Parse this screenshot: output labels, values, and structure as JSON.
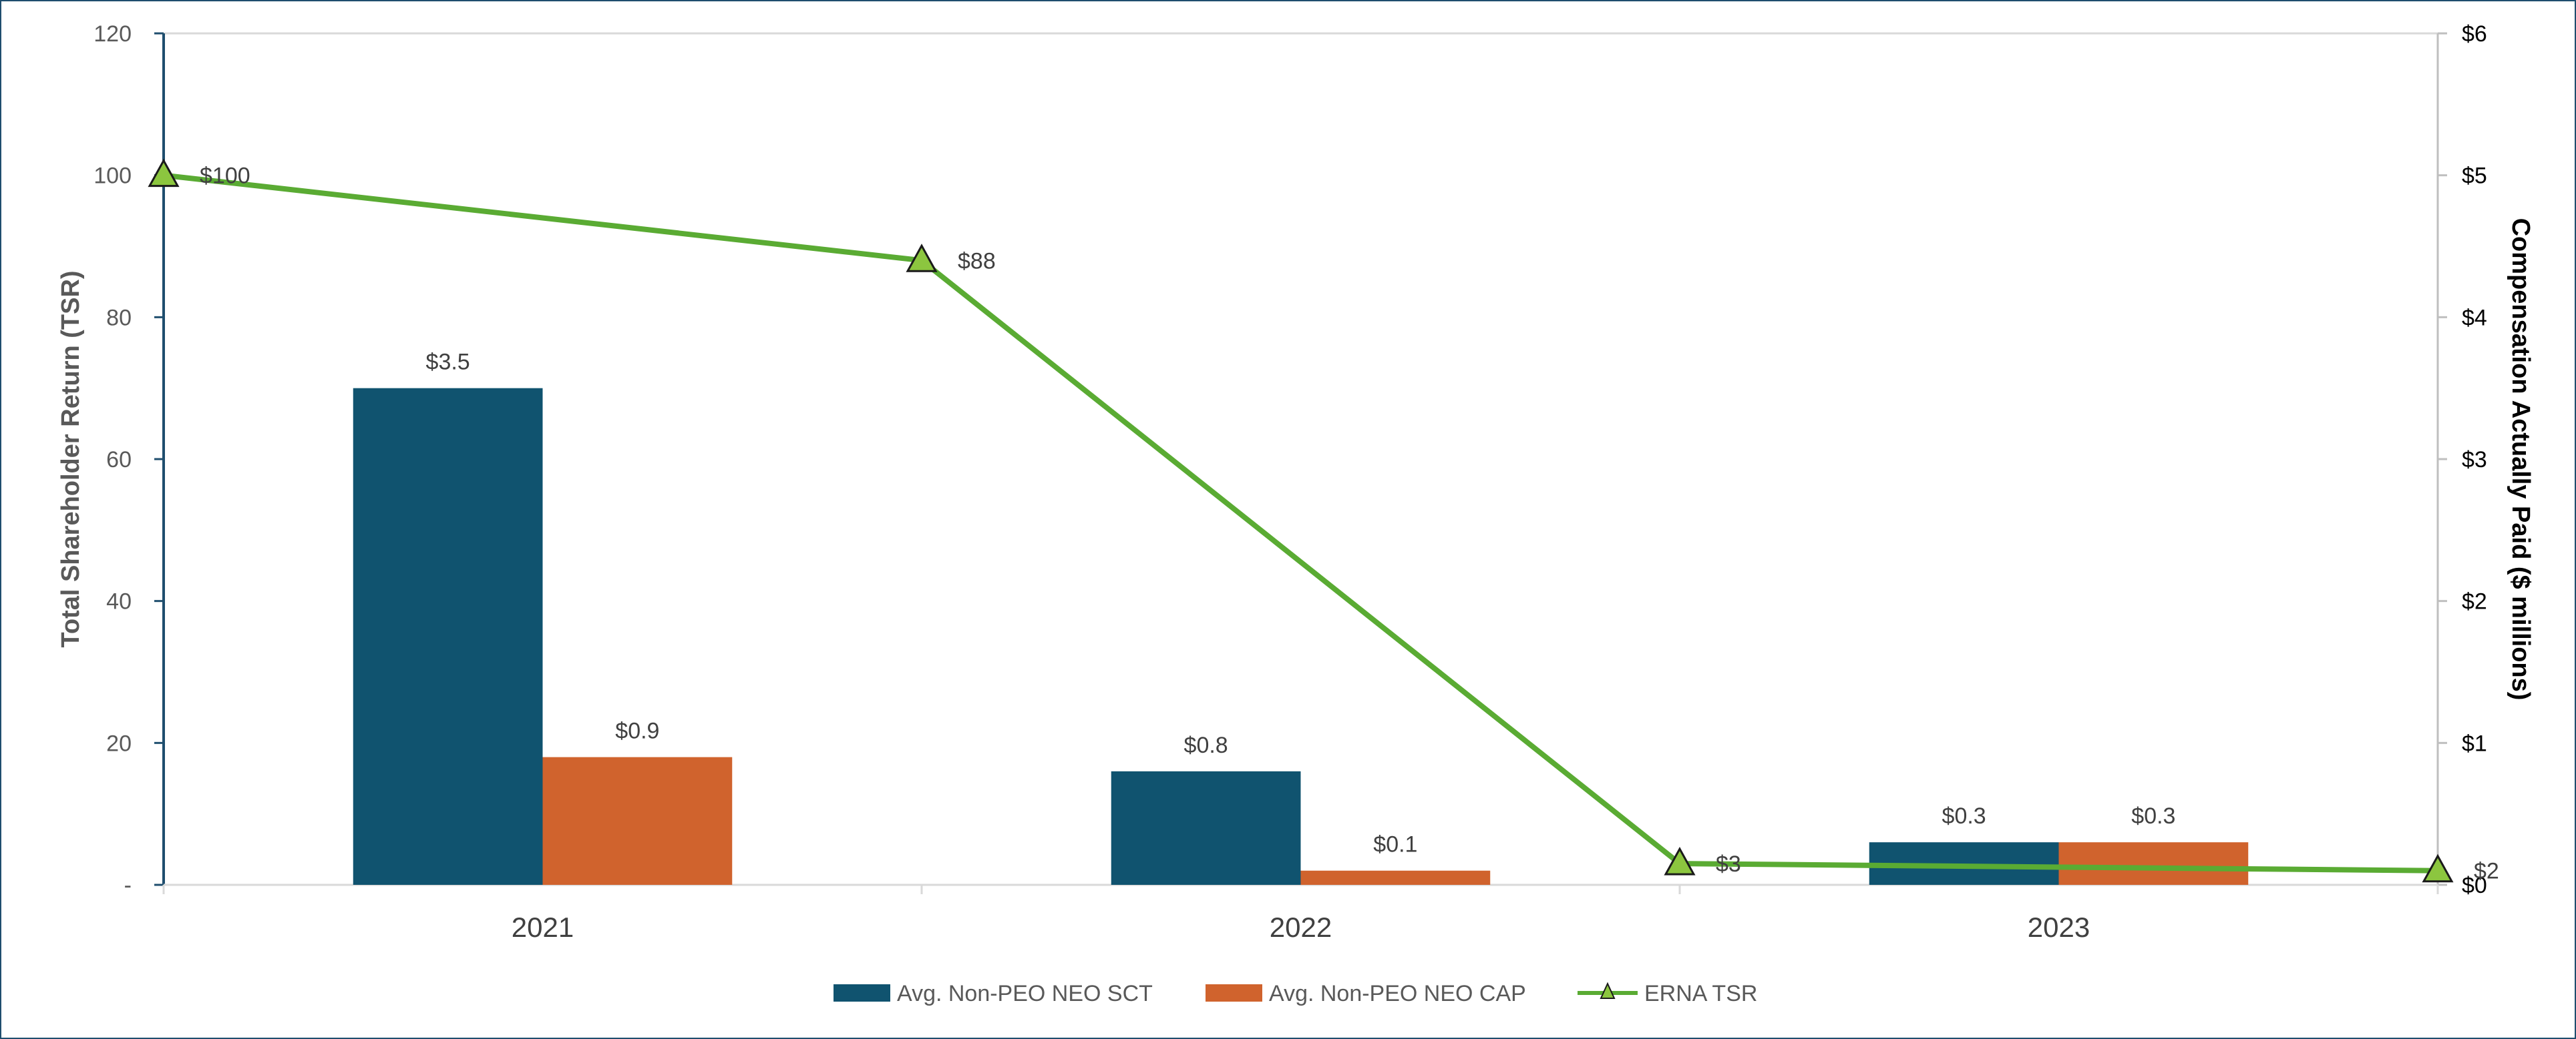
{
  "chart_data": {
    "type": "bar",
    "categories": [
      "2021",
      "2022",
      "2023"
    ],
    "series": [
      {
        "name": "Avg. Non-PEO NEO SCT",
        "values": [
          3.5,
          0.8,
          0.3
        ],
        "labels": [
          "$3.5",
          "$0.8",
          "$0.3"
        ],
        "color": "#10536f",
        "axis": "right",
        "kind": "bar"
      },
      {
        "name": "Avg. Non-PEO NEO CAP",
        "values": [
          0.9,
          0.1,
          0.3
        ],
        "labels": [
          "$0.9",
          "$0.1",
          "$0.3"
        ],
        "color": "#d0632d",
        "axis": "right",
        "kind": "bar"
      },
      {
        "name": "ERNA TSR",
        "x": [
          2020.5,
          2021.5,
          2022.5,
          2023.5
        ],
        "values": [
          100,
          88,
          3,
          2
        ],
        "labels": [
          "$100",
          "$88",
          "$3",
          "$2"
        ],
        "color": "#5aab33",
        "marker_color": "#8cc63f",
        "axis": "left",
        "kind": "line"
      }
    ],
    "ylabel": "Total Shareholder Return (TSR)",
    "y2label": "Compensation Actually Paid ($ millions)",
    "ylim": [
      0,
      120
    ],
    "y2lim": [
      0,
      6
    ],
    "yticks": [
      "-",
      "20",
      "40",
      "60",
      "80",
      "100",
      "120"
    ],
    "y2ticks": [
      "$0",
      "$1",
      "$2",
      "$3",
      "$4",
      "$5",
      "$6"
    ],
    "grid": false,
    "legend": "bottom-center"
  }
}
